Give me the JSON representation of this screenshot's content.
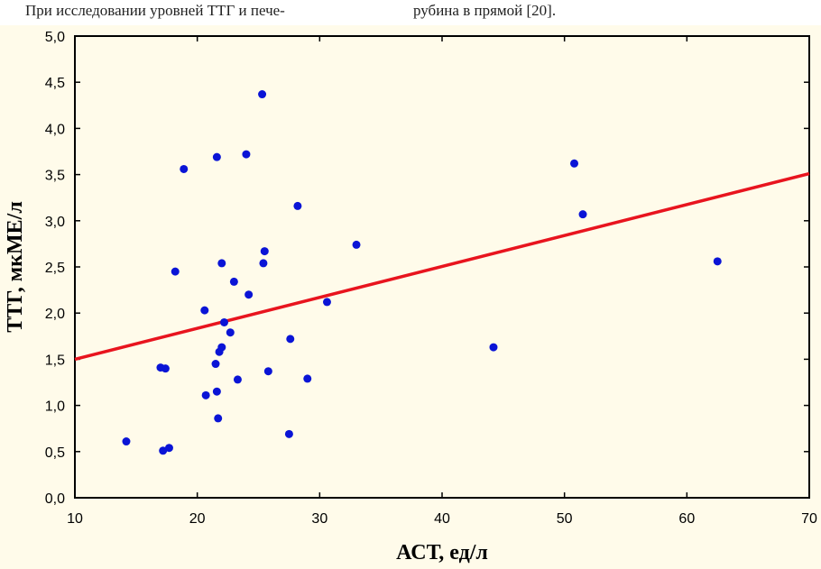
{
  "page": {
    "top_text_left": "При исследовании уровней ТТГ и пече-",
    "top_text_right": "рубина в прямой [20]."
  },
  "chart_data": {
    "type": "scatter",
    "xlabel": "АСТ, ед/л",
    "ylabel": "ТТГ, мкМЕ/л",
    "xlim": [
      10,
      70
    ],
    "ylim": [
      0,
      5
    ],
    "xticks": [
      10,
      20,
      30,
      40,
      50,
      60,
      70
    ],
    "yticks": [
      0,
      0.5,
      1,
      1.5,
      2,
      2.5,
      3,
      3.5,
      4,
      4.5,
      5
    ],
    "xtick_labels": [
      "10",
      "20",
      "30",
      "40",
      "50",
      "60",
      "70"
    ],
    "ytick_labels": [
      "0,0",
      "0,5",
      "1,0",
      "1,5",
      "2,0",
      "2,5",
      "3,0",
      "3,5",
      "4,0",
      "4,5",
      "5,0"
    ],
    "grid": false,
    "point_color": "#0a14d6",
    "line_color": "#e8141e",
    "background_color": "#fffbea",
    "series": [
      {
        "x": [
          14.2,
          17.0,
          17.2,
          17.4,
          17.7,
          18.2,
          18.9,
          20.6,
          20.7,
          21.5,
          21.6,
          21.6,
          21.7,
          21.8,
          22.0,
          22.0,
          22.2,
          22.7,
          23.0,
          23.3,
          24.0,
          24.2,
          25.3,
          25.4,
          25.5,
          25.8,
          27.5,
          27.6,
          28.2,
          29.0,
          30.6,
          33.0,
          44.2,
          50.8,
          51.5,
          62.5
        ],
        "y": [
          0.61,
          1.41,
          0.51,
          1.4,
          0.54,
          2.45,
          3.56,
          2.03,
          1.11,
          1.45,
          1.15,
          3.69,
          0.86,
          1.58,
          1.63,
          2.54,
          1.9,
          1.79,
          2.34,
          1.28,
          3.72,
          2.2,
          4.37,
          2.54,
          2.67,
          1.37,
          0.69,
          1.72,
          3.16,
          1.29,
          2.12,
          2.74,
          1.63,
          3.62,
          3.07,
          2.56
        ]
      }
    ],
    "regression_line": {
      "x": [
        10,
        70
      ],
      "y": [
        1.5,
        3.51
      ]
    }
  }
}
